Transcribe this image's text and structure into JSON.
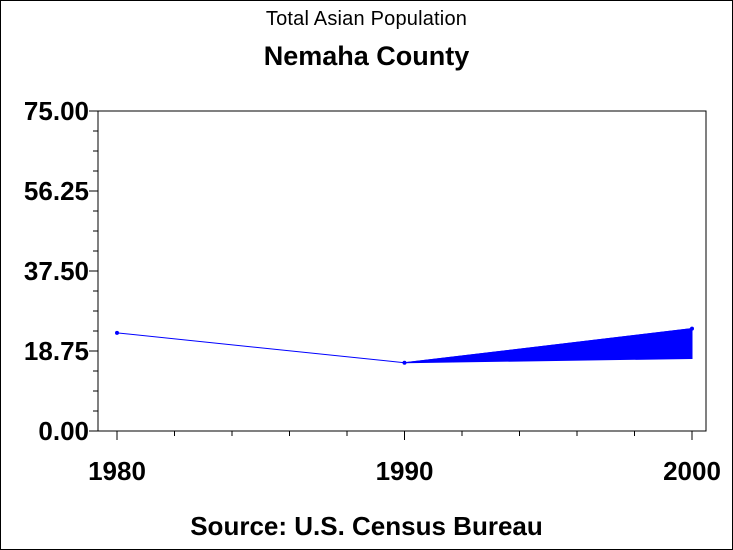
{
  "page": {
    "title": "Total Asian Population",
    "subtitle": "Nemaha County",
    "source": "Source: U.S. Census Bureau"
  },
  "chart_data": {
    "type": "line",
    "title": "Total Asian Population",
    "subtitle": "Nemaha County",
    "xlabel": "",
    "ylabel": "",
    "x": [
      1980,
      1990,
      2000
    ],
    "xlim": [
      1980,
      2000
    ],
    "ylim": [
      0,
      75
    ],
    "y_ticks": [
      "0.00",
      "18.75",
      "37.50",
      "56.25",
      "75.00"
    ],
    "x_ticks": [
      "1980",
      "1990",
      "2000"
    ],
    "series": [
      {
        "values": [
          23,
          16,
          24
        ],
        "color": "#0000ff"
      }
    ],
    "band": {
      "x": [
        1990,
        2000
      ],
      "low": [
        16,
        17
      ],
      "high": [
        16,
        24
      ],
      "color": "#0000ff"
    },
    "grid": false,
    "legend": "none"
  }
}
